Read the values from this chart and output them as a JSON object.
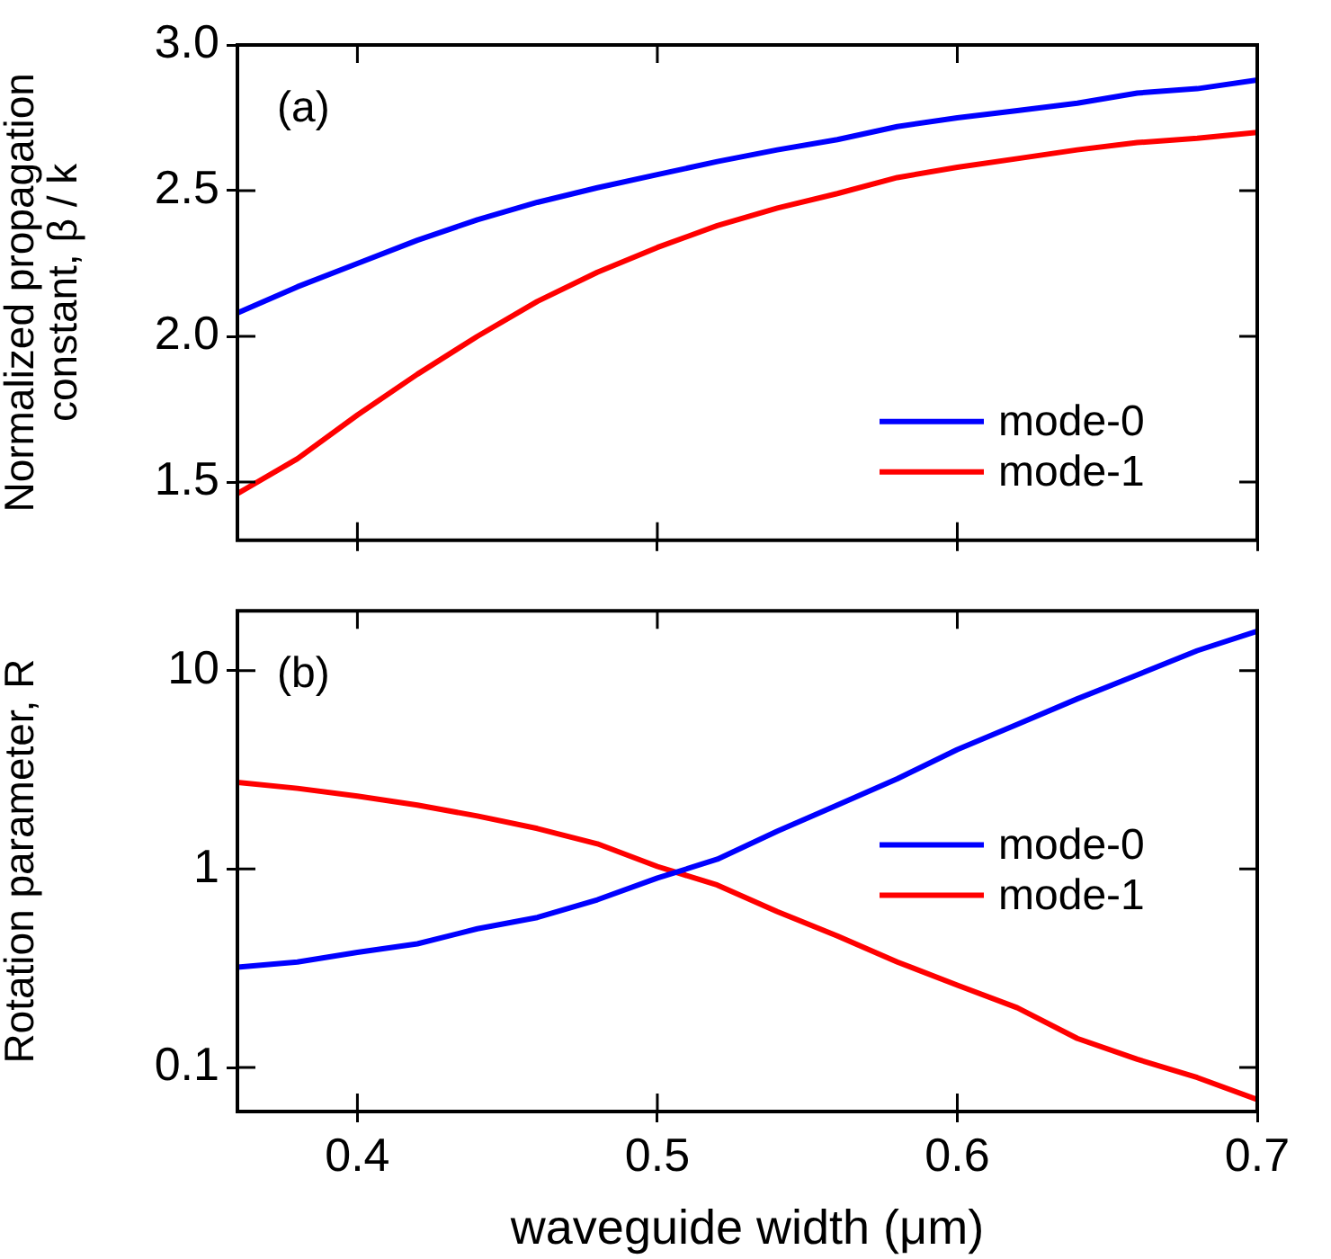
{
  "chart_data": [
    {
      "type": "line",
      "ylabel": "Normalized propagation\nconstant, β / k",
      "annotations": [
        "(a)"
      ],
      "x": [
        0.36,
        0.38,
        0.4,
        0.42,
        0.44,
        0.46,
        0.48,
        0.5,
        0.52,
        0.54,
        0.56,
        0.58,
        0.6,
        0.62,
        0.64,
        0.66,
        0.68,
        0.7
      ],
      "series": [
        {
          "name": "mode-0",
          "color": "#0000ff",
          "values": [
            2.08,
            2.17,
            2.25,
            2.33,
            2.4,
            2.46,
            2.51,
            2.555,
            2.6,
            2.64,
            2.675,
            2.72,
            2.75,
            2.775,
            2.8,
            2.835,
            2.85,
            2.88
          ]
        },
        {
          "name": "mode-1",
          "color": "#ff0000",
          "values": [
            1.46,
            1.58,
            1.73,
            1.87,
            2.0,
            2.12,
            2.22,
            2.305,
            2.38,
            2.44,
            2.49,
            2.545,
            2.58,
            2.61,
            2.64,
            2.665,
            2.68,
            2.7
          ]
        }
      ],
      "xlim": [
        0.36,
        0.7
      ],
      "xticks": [
        0.4,
        0.5,
        0.6,
        0.7
      ],
      "ylim": [
        1.3,
        3.0
      ],
      "yticks": [
        {
          "value": 1.5,
          "label": "1.5"
        },
        {
          "value": 2,
          "label": "2.0"
        },
        {
          "value": 2.5,
          "label": "2.5"
        },
        {
          "value": 3,
          "label": "3.0"
        }
      ],
      "tick_labels": "y",
      "legend": "bottom right",
      "grid": false,
      "marker": "none",
      "line_style": "solid"
    },
    {
      "type": "line",
      "ylabel": "Rotation parameter, R",
      "xlabel": "waveguide width (μm)",
      "annotations": [
        "(b)"
      ],
      "x": [
        0.36,
        0.38,
        0.4,
        0.42,
        0.44,
        0.46,
        0.48,
        0.5,
        0.52,
        0.54,
        0.56,
        0.58,
        0.6,
        0.62,
        0.64,
        0.66,
        0.68,
        0.7
      ],
      "series": [
        {
          "name": "mode-0",
          "color": "#0000ff",
          "values": [
            0.32,
            0.34,
            0.38,
            0.42,
            0.5,
            0.57,
            0.7,
            0.9,
            1.12,
            1.55,
            2.1,
            2.85,
            4.0,
            5.35,
            7.2,
            9.5,
            12.6,
            15.8
          ]
        },
        {
          "name": "mode-1",
          "color": "#ff0000",
          "values": [
            2.73,
            2.55,
            2.33,
            2.1,
            1.85,
            1.6,
            1.34,
            1.03,
            0.83,
            0.61,
            0.46,
            0.34,
            0.26,
            0.2,
            0.14,
            0.11,
            0.089,
            0.069
          ]
        }
      ],
      "xlim": [
        0.36,
        0.7
      ],
      "xticks": [
        0.4,
        0.5,
        0.6,
        0.7
      ],
      "ylim": [
        0.06,
        20
      ],
      "yticks": [
        0.1,
        1,
        10
      ],
      "log": "y",
      "legend": "right",
      "grid": false,
      "marker": "none",
      "line_style": "solid"
    }
  ]
}
